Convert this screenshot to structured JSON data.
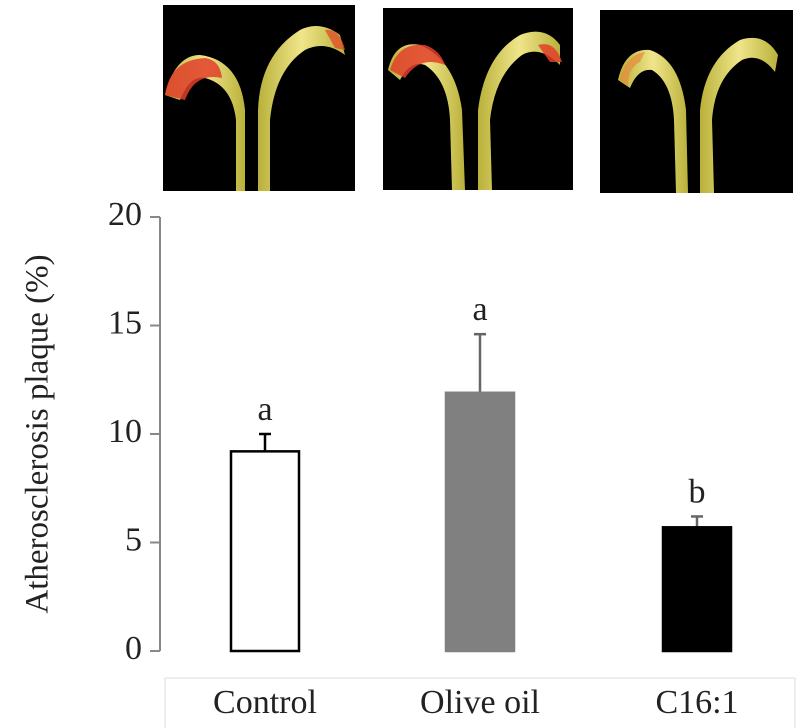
{
  "chart_data": {
    "type": "bar",
    "y_label": "Atherosclerosis plaque (%)",
    "categories": [
      "Control",
      "Olive oil",
      "C16:1"
    ],
    "values": [
      9.2,
      11.9,
      5.7
    ],
    "errors": [
      0.8,
      2.7,
      0.5
    ],
    "annotations": [
      "a",
      "a",
      "b"
    ],
    "colors": [
      "#ffffff",
      "#808080",
      "#000000"
    ],
    "ylim": [
      0,
      20
    ],
    "yticks": [
      0,
      5,
      10,
      15,
      20
    ]
  }
}
